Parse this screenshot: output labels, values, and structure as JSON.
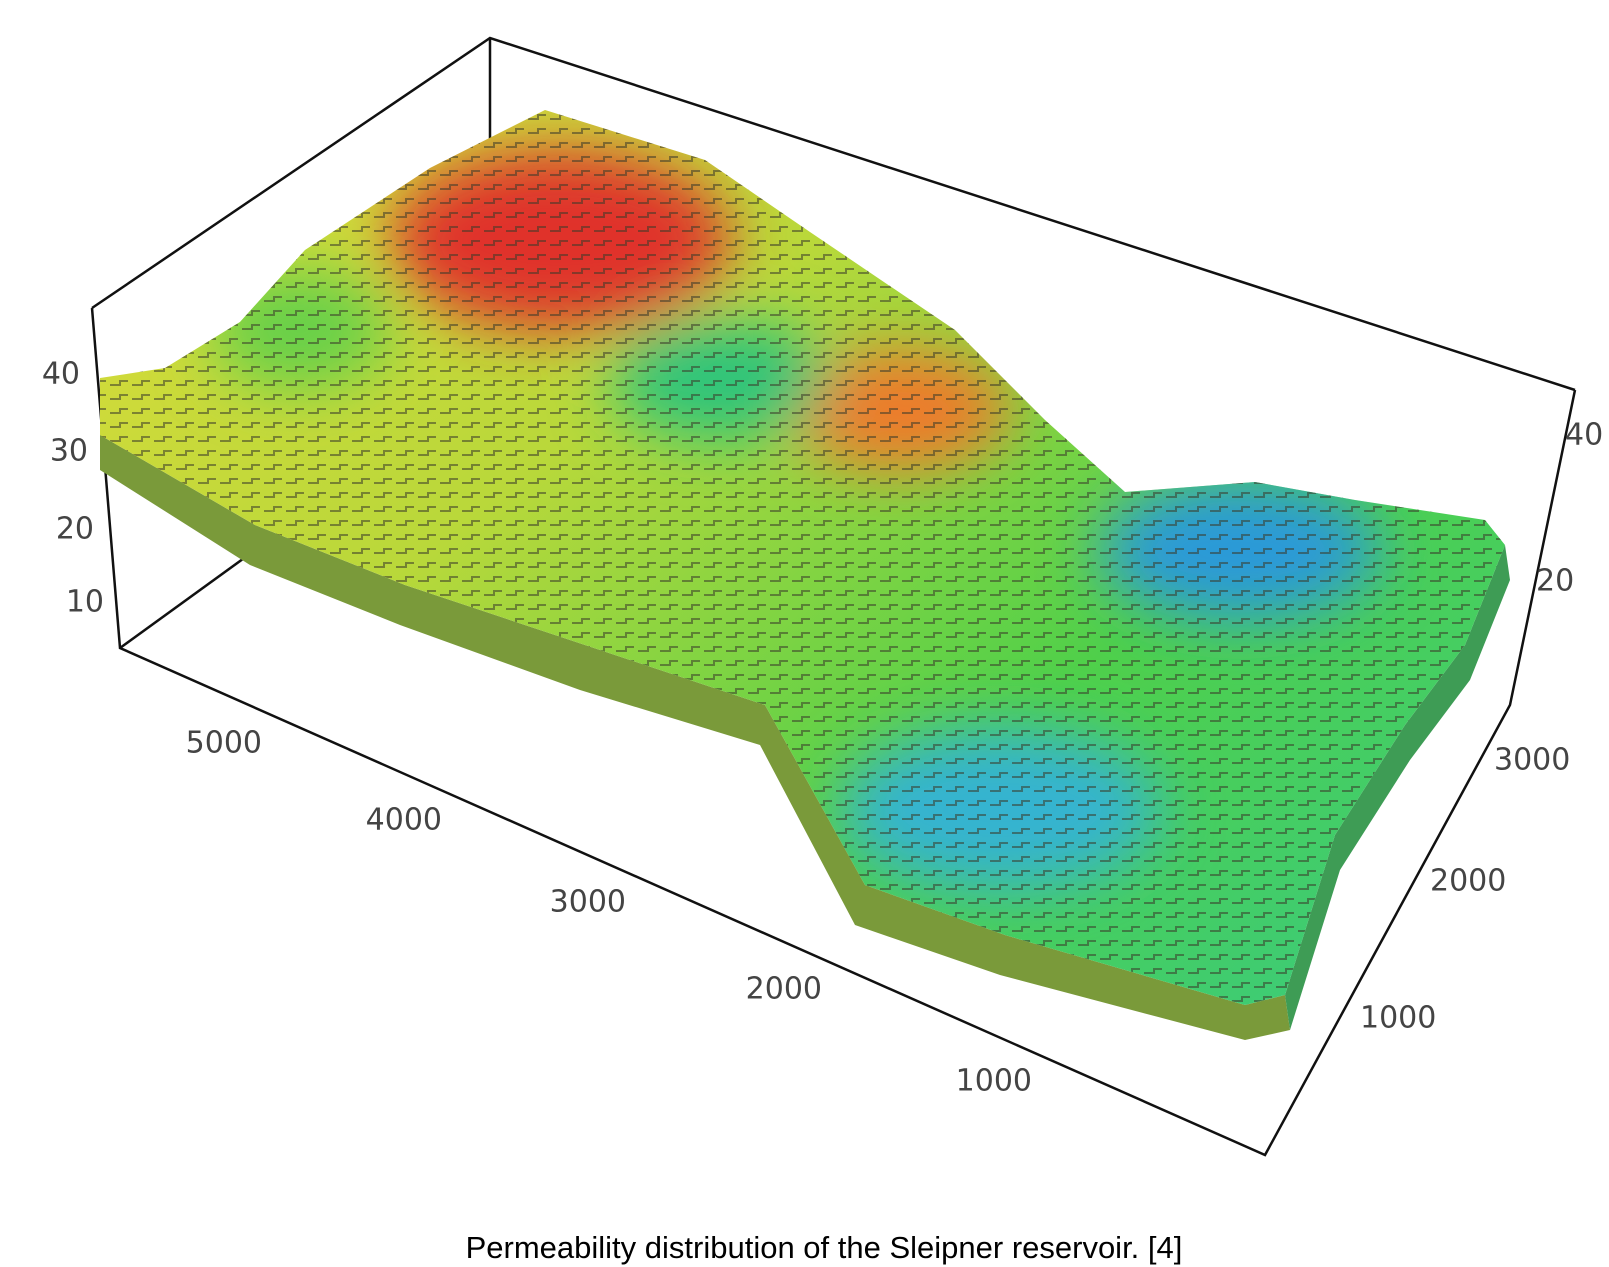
{
  "figure": {
    "caption": "Permeability distribution of the Sleipner reservoir. [4]",
    "z_ticks_left": [
      "40",
      "30",
      "20",
      "10"
    ],
    "z_ticks_right": [
      "40",
      "20"
    ],
    "x_ticks": [
      "5000",
      "4000",
      "3000",
      "2000",
      "1000"
    ],
    "y_ticks": [
      "3000",
      "2000",
      "1000"
    ]
  }
}
